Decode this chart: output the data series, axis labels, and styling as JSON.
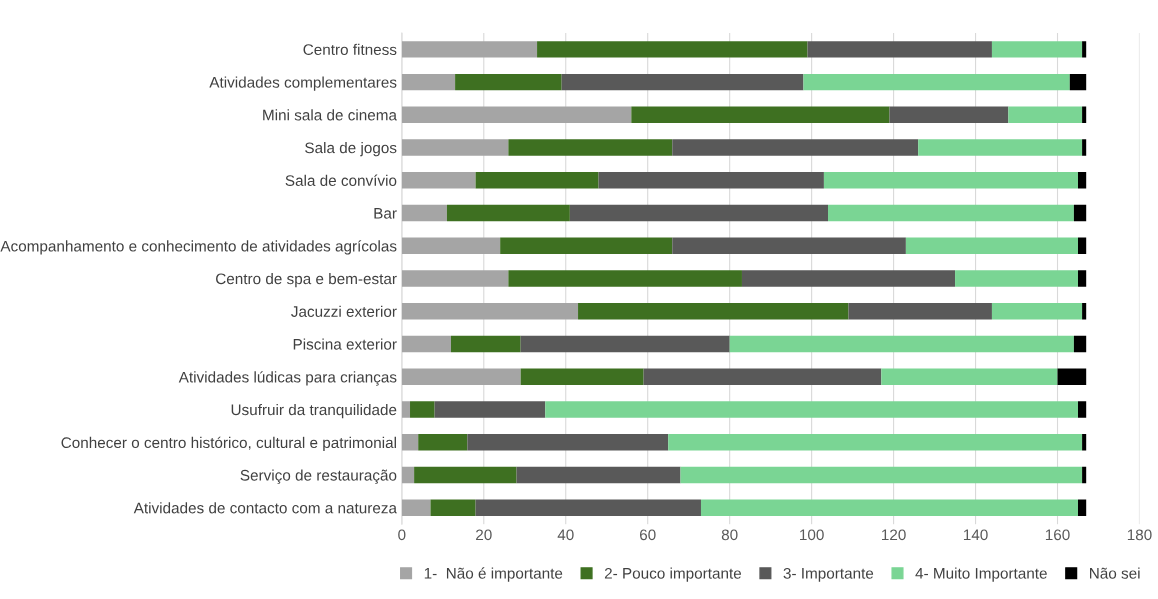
{
  "chart_data": {
    "type": "bar",
    "orientation": "horizontal",
    "stacked": true,
    "categories": [
      "Centro fitness",
      "Atividades complementares",
      "Mini sala de cinema",
      "Sala de jogos",
      "Sala de convívio",
      "Bar",
      "Acompanhamento e conhecimento de atividades agrícolas",
      "Centro de spa e bem-estar",
      "Jacuzzi exterior",
      "Piscina exterior",
      "Atividades lúdicas para crianças",
      "Usufruir da tranquilidade",
      "Conhecer o centro histórico, cultural e patrimonial",
      "Serviço de restauração",
      "Atividades de contacto com a natureza"
    ],
    "series": [
      {
        "name": "1-  Não é importante",
        "color": "#a5a5a5",
        "values": [
          33,
          13,
          56,
          26,
          18,
          11,
          24,
          26,
          43,
          12,
          29,
          2,
          4,
          3,
          7
        ]
      },
      {
        "name": "2- Pouco importante",
        "color": "#3e7021",
        "values": [
          66,
          26,
          63,
          40,
          30,
          30,
          42,
          57,
          66,
          17,
          30,
          6,
          12,
          25,
          11
        ]
      },
      {
        "name": "3- Importante",
        "color": "#595959",
        "values": [
          45,
          59,
          29,
          60,
          55,
          63,
          57,
          52,
          35,
          51,
          58,
          27,
          49,
          40,
          55
        ]
      },
      {
        "name": "4- Muito Importante",
        "color": "#7ad594",
        "values": [
          22,
          65,
          18,
          40,
          62,
          60,
          42,
          30,
          22,
          84,
          43,
          130,
          101,
          98,
          92
        ]
      },
      {
        "name": "Não sei",
        "color": "#000000",
        "values": [
          1,
          4,
          1,
          1,
          2,
          3,
          2,
          2,
          1,
          3,
          7,
          2,
          1,
          1,
          2
        ]
      }
    ],
    "xlim": [
      0,
      180
    ],
    "xticks": [
      0,
      20,
      40,
      60,
      80,
      100,
      120,
      140,
      160,
      180
    ],
    "grid": "x",
    "legend": "bottom"
  }
}
